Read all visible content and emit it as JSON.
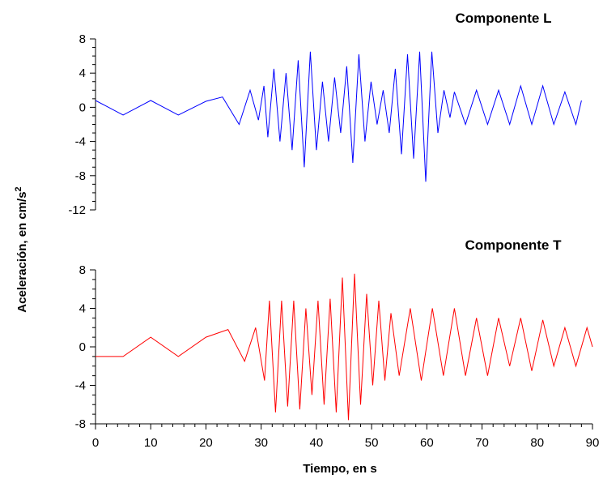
{
  "ylabel": "Aceleración, en cm/s",
  "ylabel_sup": "2",
  "xlabel": "Tiempo, en s",
  "chart_data": [
    {
      "type": "line",
      "title": "Componente L",
      "series": [
        {
          "color": "#0000ff"
        }
      ],
      "xlim": [
        0,
        90
      ],
      "ylim": [
        -12,
        8
      ],
      "yticks": [
        8,
        4,
        0,
        -4,
        -8,
        -12
      ],
      "ytick_labels": [
        "8",
        "4",
        "0",
        "-4",
        "-8",
        "-12"
      ],
      "x": [
        0,
        5,
        10,
        15,
        20,
        23,
        26,
        28,
        29.5,
        30.5,
        31.2,
        32.3,
        33.4,
        34.5,
        35.6,
        36.7,
        37.8,
        38.9,
        40,
        41.1,
        42.2,
        43.3,
        44.4,
        45.5,
        46.6,
        47.7,
        48.8,
        49.9,
        51,
        52.1,
        53.2,
        54.3,
        55.4,
        56.5,
        57.6,
        58.7,
        59.8,
        60.9,
        62,
        63.1,
        64.2,
        65,
        67,
        69,
        71,
        73,
        75,
        77,
        79,
        81,
        83,
        85,
        87,
        88
      ],
      "values": [
        0.8,
        -0.9,
        0.8,
        -0.9,
        0.7,
        1.2,
        -2,
        2,
        -1.5,
        2.5,
        -3.5,
        4.5,
        -4,
        4,
        -5,
        5.5,
        -7,
        6.5,
        -5,
        3,
        -4,
        3.5,
        -3,
        4.8,
        -6.5,
        6.2,
        -4,
        3,
        -2,
        2,
        -3,
        4.5,
        -5.5,
        6.2,
        -6,
        6.5,
        -8.7,
        6.5,
        -3,
        2,
        -1.2,
        1.8,
        -2,
        2,
        -2,
        2,
        -2,
        2.5,
        -2,
        2.5,
        -2,
        1.8,
        -2,
        0.8
      ]
    },
    {
      "type": "line",
      "title": "Componente T",
      "series": [
        {
          "color": "#ff0000"
        }
      ],
      "xlim": [
        0,
        90
      ],
      "ylim": [
        -8,
        8
      ],
      "yticks": [
        8,
        4,
        0,
        -4,
        -8
      ],
      "ytick_labels": [
        "8",
        "4",
        "0",
        "-4",
        "-8"
      ],
      "xticks": [
        0,
        10,
        20,
        30,
        40,
        50,
        60,
        70,
        80,
        90
      ],
      "xtick_labels": [
        "0",
        "10",
        "20",
        "30",
        "40",
        "50",
        "60",
        "70",
        "80",
        "90"
      ],
      "x": [
        0,
        5,
        10,
        15,
        20,
        24,
        27,
        29,
        30.6,
        31.5,
        32.6,
        33.7,
        34.8,
        35.9,
        37,
        38.1,
        39.2,
        40.3,
        41.4,
        42.5,
        43.6,
        44.7,
        45.8,
        46.9,
        48,
        49.1,
        50.2,
        51.3,
        52.4,
        53.5,
        55,
        57,
        59,
        61,
        63,
        65,
        67,
        69,
        71,
        73,
        75,
        77,
        79,
        81,
        83,
        85,
        87,
        89,
        90
      ],
      "values": [
        -1,
        -1,
        1,
        -1,
        1,
        1.8,
        -1.5,
        2,
        -3.5,
        4.8,
        -6.8,
        4.8,
        -6.2,
        4.8,
        -6.5,
        4,
        -5,
        4.8,
        -6,
        5,
        -6.8,
        7.2,
        -7.6,
        7.6,
        -6,
        5.5,
        -4,
        4.8,
        -3.5,
        3.5,
        -3,
        4,
        -3.5,
        4,
        -3,
        4,
        -3,
        3,
        -3,
        3,
        -2,
        3,
        -2.5,
        2.8,
        -2,
        2,
        -2,
        2,
        0
      ]
    }
  ]
}
